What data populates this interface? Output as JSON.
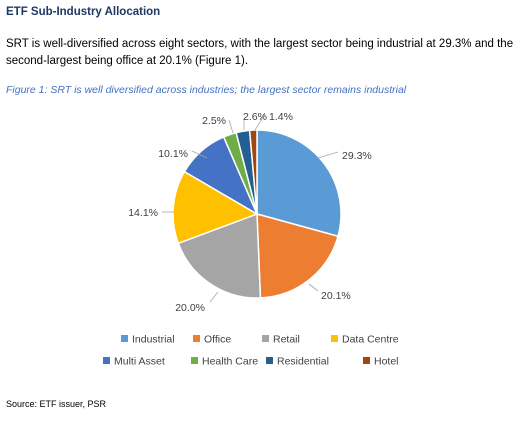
{
  "heading": "ETF Sub-Industry Allocation",
  "paragraph": "SRT is well-diversified across eight sectors, with the largest sector being industrial at 29.3% and the second-largest being office at 20.1% (Figure 1).",
  "caption": "Figure 1: SRT is well diversified across industries; the largest sector remains industrial",
  "source": "Source: ETF issuer, PSR",
  "chart_data": {
    "type": "pie",
    "title": "",
    "categories": [
      "Industrial",
      "Office",
      "Retail",
      "Data Centre",
      "Multi Asset",
      "Health Care",
      "Residential",
      "Hotel"
    ],
    "values": [
      29.3,
      20.1,
      20.0,
      14.1,
      10.1,
      2.5,
      2.6,
      1.4
    ],
    "labels": [
      "29.3%",
      "20.1%",
      "20.0%",
      "14.1%",
      "10.1%",
      "2.5%",
      "2.6%",
      "1.4%"
    ],
    "colors": [
      "#5b9bd5",
      "#ed7d31",
      "#a5a5a5",
      "#ffc000",
      "#4472c4",
      "#70ad47",
      "#255e91",
      "#9e480e"
    ],
    "legend_position": "bottom"
  }
}
